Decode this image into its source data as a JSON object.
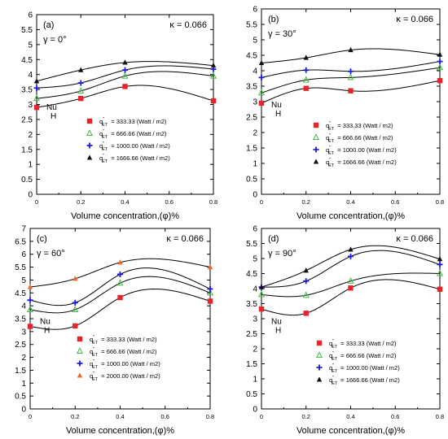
{
  "chart_data": [
    {
      "type": "scatter",
      "panel_label": "(a)",
      "kappa_label": "κ = 0.066",
      "gamma_label": "γ = 0°",
      "xlabel": "Volume concentration,(φ)%",
      "ylabel_main": "Nu",
      "ylabel_sub": "H",
      "xlim": [
        0,
        0.8
      ],
      "ylim": [
        0,
        6
      ],
      "xticks": [
        0,
        0.2,
        0.4,
        0.6,
        0.8
      ],
      "xtick_labels": [
        "0",
        "0.2",
        "0.4",
        "0.6",
        "0.8"
      ],
      "yticks": [
        0,
        0.5,
        1,
        1.5,
        2,
        2.5,
        3,
        3.5,
        4,
        4.5,
        5,
        5.5,
        6
      ],
      "ytick_labels": [
        "0",
        "0.5",
        "1",
        "1.5",
        "2",
        "2.5",
        "3",
        "3.5",
        "4",
        "4.5",
        "5",
        "5.5",
        "6"
      ],
      "legend_placement": "center-right",
      "x": [
        0,
        0.2,
        0.4,
        0.8
      ],
      "series": [
        {
          "q": "q",
          "sub": "ET",
          "sup": "″",
          "legend_value": "= 333.33 (Watt / m2)",
          "marker": "square",
          "color": "#e8242a",
          "values": [
            2.9,
            3.2,
            3.6,
            3.12
          ]
        },
        {
          "q": "q",
          "sub": "ET",
          "sup": "″",
          "legend_value": "= 666.66 (Watt / m2)",
          "marker": "triangle-open",
          "color": "#3dbb3d",
          "values": [
            3.2,
            3.45,
            3.95,
            3.95
          ]
        },
        {
          "q": "q",
          "sub": "ET",
          "sup": "″",
          "legend_value": "= 1000.00 (Watt / m2)",
          "marker": "plus",
          "color": "#1a1ae0",
          "values": [
            3.55,
            3.72,
            4.15,
            4.18
          ]
        },
        {
          "q": "q",
          "sub": "ET",
          "sup": "″",
          "legend_value": "= 1666.66 (Watt / m2)",
          "marker": "triangle",
          "color": "#111111",
          "values": [
            3.78,
            4.15,
            4.4,
            4.3
          ]
        }
      ]
    },
    {
      "type": "scatter",
      "panel_label": "(b)",
      "kappa_label": "κ = 0.066",
      "gamma_label": "γ = 30°",
      "xlabel": "Volume concentration,(φ)%",
      "ylabel_main": "Nu",
      "ylabel_sub": "H",
      "xlim": [
        0,
        0.8
      ],
      "ylim": [
        0,
        6
      ],
      "xticks": [
        0,
        0.2,
        0.4,
        0.6,
        0.8
      ],
      "xtick_labels": [
        "0",
        "0.2",
        "0.4",
        "0.6",
        "0.8"
      ],
      "yticks": [
        0,
        0.5,
        1,
        1.5,
        2,
        2.5,
        3,
        3.5,
        4,
        4.5,
        5,
        5.5,
        6
      ],
      "ytick_labels": [
        "0",
        "0.5",
        "1",
        "1.5",
        "2",
        "2.5",
        "3",
        "3.5",
        "4",
        "4.5",
        "5",
        "5.5",
        "6"
      ],
      "legend_placement": "center-right",
      "x": [
        0,
        0.2,
        0.4,
        0.8
      ],
      "series": [
        {
          "q": "q",
          "sub": "ET",
          "sup": "″",
          "legend_value": "= 333.33 (Watt / m2)",
          "marker": "square",
          "color": "#e8242a",
          "values": [
            2.95,
            3.43,
            3.35,
            3.68
          ]
        },
        {
          "q": "q",
          "sub": "ET",
          "sup": "″",
          "legend_value": "= 666.66 (Watt / m2)",
          "marker": "triangle-open",
          "color": "#3dbb3d",
          "values": [
            3.28,
            3.7,
            3.78,
            4.1
          ]
        },
        {
          "q": "q",
          "sub": "ET",
          "sup": "″",
          "legend_value": "= 1000.00 (Watt / m2)",
          "marker": "plus",
          "color": "#1a1ae0",
          "values": [
            3.78,
            4.02,
            3.98,
            4.3
          ]
        },
        {
          "q": "q",
          "sub": "ET",
          "sup": "″",
          "legend_value": "= 1666.66 (Watt / m2)",
          "marker": "triangle",
          "color": "#111111",
          "values": [
            4.25,
            4.42,
            4.67,
            4.52
          ]
        }
      ]
    },
    {
      "type": "scatter",
      "panel_label": "(c)",
      "kappa_label": "κ = 0.066",
      "gamma_label": "γ = 60°",
      "xlabel": "Volume concentration,(φ)%",
      "ylabel_main": "Nu",
      "ylabel_sub": "H",
      "xlim": [
        0,
        0.8
      ],
      "ylim": [
        0,
        7
      ],
      "xticks": [
        0,
        0.2,
        0.4,
        0.6,
        0.8
      ],
      "xtick_labels": [
        "0",
        "0.2",
        "0.4",
        "0.6",
        "0.8"
      ],
      "yticks": [
        0,
        0.5,
        1,
        1.5,
        2,
        2.5,
        3,
        3.5,
        4,
        4.5,
        5,
        5.5,
        6,
        6.5,
        7
      ],
      "ytick_labels": [
        "0",
        "0.5",
        "1",
        "1.5",
        "2",
        "2.5",
        "3",
        "3.5",
        "4",
        "4.5",
        "5",
        "5.5",
        "6",
        "6.5",
        "7"
      ],
      "legend_placement": "bottom-right",
      "x": [
        0,
        0.2,
        0.4,
        0.8
      ],
      "series": [
        {
          "q": "q",
          "sub": "ET",
          "sup": "″",
          "legend_value": "= 333.33 (Watt / m2)",
          "marker": "square",
          "color": "#e8242a",
          "values": [
            3.2,
            3.22,
            4.32,
            4.18
          ]
        },
        {
          "q": "q",
          "sub": "ET",
          "sup": "″",
          "legend_value": "= 666.66 (Watt / m2)",
          "marker": "triangle-open",
          "color": "#3dbb3d",
          "values": [
            3.85,
            3.85,
            4.88,
            4.5
          ]
        },
        {
          "q": "q",
          "sub": "ET",
          "sup": "″",
          "legend_value": "= 1000.00 (Watt / m2)",
          "marker": "plus",
          "color": "#1a1ae0",
          "values": [
            4.22,
            4.12,
            5.22,
            4.65
          ]
        },
        {
          "q": "q",
          "sub": "ET",
          "sup": "″",
          "legend_value": "= 2000.00 (Watt / m2)",
          "marker": "triangle",
          "color": "#ee6a2c",
          "values": [
            4.73,
            5.05,
            5.68,
            5.5
          ]
        }
      ]
    },
    {
      "type": "scatter",
      "panel_label": "(d)",
      "kappa_label": "κ = 0.066",
      "gamma_label": "γ = 90°",
      "xlabel": "Volume concentration,(φ)%",
      "ylabel_main": "Nu",
      "ylabel_sub": "H",
      "xlim": [
        0,
        0.8
      ],
      "ylim": [
        0,
        6
      ],
      "xticks": [
        0,
        0.2,
        0.4,
        0.6,
        0.8
      ],
      "xtick_labels": [
        "0",
        "0.2",
        "0.4",
        "0.6",
        "0.8"
      ],
      "yticks": [
        0,
        0.5,
        1,
        1.5,
        2,
        2.5,
        3,
        3.5,
        4,
        4.5,
        5,
        5.5,
        6
      ],
      "ytick_labels": [
        "0",
        "0.5",
        "1",
        "1.5",
        "2",
        "2.5",
        "3",
        "3.5",
        "4",
        "4.5",
        "5",
        "5.5",
        "6"
      ],
      "legend_placement": "bottom-right",
      "x": [
        0,
        0.2,
        0.4,
        0.8
      ],
      "series": [
        {
          "q": "q",
          "sub": "ET",
          "sup": "″",
          "legend_value": "= 333.33 (Watt / m2)",
          "marker": "square",
          "color": "#e8242a",
          "values": [
            3.32,
            3.18,
            4.02,
            3.98
          ]
        },
        {
          "q": "q",
          "sub": "ET",
          "sup": "″",
          "legend_value": "= 666.66 (Watt / m2)",
          "marker": "triangle-open",
          "color": "#3dbb3d",
          "values": [
            3.8,
            3.78,
            4.25,
            4.5
          ]
        },
        {
          "q": "q",
          "sub": "ET",
          "sup": "″",
          "legend_value": "= 1000.00 (Watt / m2)",
          "marker": "plus",
          "color": "#1a1ae0",
          "values": [
            4.05,
            4.25,
            5.07,
            4.8
          ]
        },
        {
          "q": "q",
          "sub": "ET",
          "sup": "″",
          "legend_value": "= 1666.66 (Watt / m2)",
          "marker": "triangle",
          "color": "#111111",
          "values": [
            4.05,
            4.6,
            5.3,
            4.98
          ]
        }
      ]
    }
  ]
}
